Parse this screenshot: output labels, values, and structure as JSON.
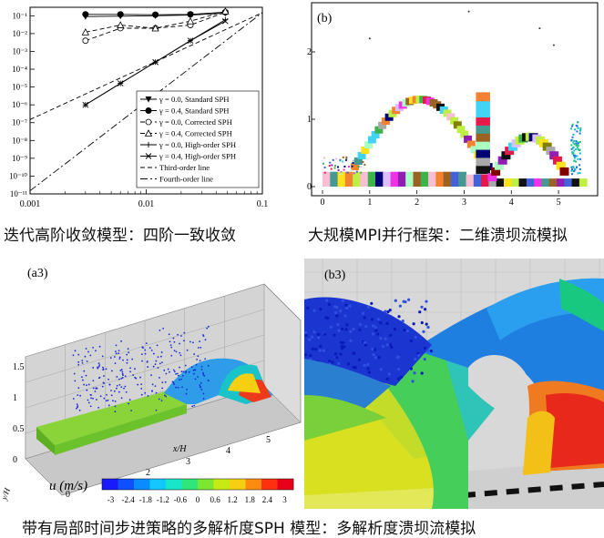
{
  "captions": {
    "top_left": "迭代高阶收敛模型：四阶一致收敛",
    "top_right": "大规模MPI并行框架：二维溃坝流模拟",
    "bottom": "带有局部时间步进策略的多解析度SPH 模型：多解析度溃坝流模拟"
  },
  "panel_labels": {
    "b": "(b)",
    "a3": "(a3)",
    "b3": "(b3)"
  },
  "colorbar": {
    "label": "u (m/s)",
    "ticks": [
      "-3",
      "-2.4",
      "-1.8",
      "-1.2",
      "-0.6",
      "0",
      "0.6",
      "1.2",
      "1.8",
      "2.4",
      "3"
    ],
    "colors": [
      "#1a1aff",
      "#0f4fff",
      "#0a8cff",
      "#12c8ff",
      "#18e6c8",
      "#2ee67a",
      "#7ce632",
      "#c8ea14",
      "#f6d010",
      "#ff8a10",
      "#ff3010",
      "#e8001a"
    ]
  },
  "axis_3d": {
    "z_ticks": [
      "0",
      "0.5",
      "1",
      "1.5"
    ],
    "x_ticks": [
      "0",
      "1",
      "2",
      "3",
      "4",
      "5"
    ],
    "xlabel": "x/H",
    "ylabel": "y/H"
  },
  "dam_break_axis": {
    "x_ticks": [
      "0",
      "1",
      "2",
      "3",
      "4",
      "5"
    ],
    "y_ticks": [
      "0",
      "1",
      "2"
    ]
  },
  "chart_data": [
    {
      "type": "line",
      "xscale": "log",
      "yscale": "log",
      "xlim": [
        0.001,
        0.1
      ],
      "ylim": [
        1e-11,
        0.3
      ],
      "x_tick_labels": [
        "0.001",
        "0.01",
        "0.1"
      ],
      "y_tick_labels": [
        "10⁻¹",
        "10⁻²",
        "10⁻³",
        "10⁻⁴",
        "10⁻⁵",
        "10⁻⁶",
        "10⁻⁷",
        "10⁻⁸",
        "10⁻⁹",
        "10⁻¹⁰",
        "10⁻¹¹"
      ],
      "legend_position": "bottom-right",
      "series": [
        {
          "name": "γ = 0.0, Standard SPH",
          "marker": "triangle-down-filled",
          "line": "solid",
          "x": [
            0.003,
            0.006,
            0.012,
            0.024,
            0.048
          ],
          "y": [
            0.09,
            0.095,
            0.1,
            0.11,
            0.14
          ]
        },
        {
          "name": "γ = 0.4, Standard SPH",
          "marker": "circle-filled",
          "line": "solid",
          "x": [
            0.003,
            0.006,
            0.012,
            0.024,
            0.048
          ],
          "y": [
            0.12,
            0.12,
            0.115,
            0.12,
            0.16
          ]
        },
        {
          "name": "γ = 0.0, Corrected SPH",
          "marker": "circle-open",
          "line": "dashed",
          "x": [
            0.003,
            0.006,
            0.012,
            0.024,
            0.048
          ],
          "y": [
            0.004,
            0.02,
            0.02,
            0.03,
            0.16
          ]
        },
        {
          "name": "γ = 0.4, Corrected SPH",
          "marker": "triangle-open",
          "line": "dashed",
          "x": [
            0.003,
            0.006,
            0.012,
            0.024,
            0.048
          ],
          "y": [
            0.012,
            0.03,
            0.02,
            0.05,
            0.18
          ]
        },
        {
          "name": "γ = 0.0, High-order SPH",
          "marker": "plus",
          "line": "solid",
          "x": [
            0.003,
            0.006,
            0.012,
            0.024,
            0.048
          ],
          "y": [
            1e-06,
            1.6e-05,
            0.00025,
            0.004,
            0.06
          ]
        },
        {
          "name": "γ = 0.4, High-order SPH",
          "marker": "x",
          "line": "solid",
          "x": [
            0.003,
            0.006,
            0.012,
            0.024,
            0.048
          ],
          "y": [
            1e-06,
            1.6e-05,
            0.00025,
            0.004,
            0.05
          ]
        },
        {
          "name": "Third-order line",
          "marker": "none",
          "line": "dashed",
          "x": [
            0.001,
            0.1
          ],
          "y": [
            1.5e-07,
            0.15
          ]
        },
        {
          "name": "Fourth-order line",
          "marker": "none",
          "line": "dashdot",
          "x": [
            0.001,
            0.1
          ],
          "y": [
            1.5e-11,
            0.15
          ]
        }
      ]
    }
  ]
}
